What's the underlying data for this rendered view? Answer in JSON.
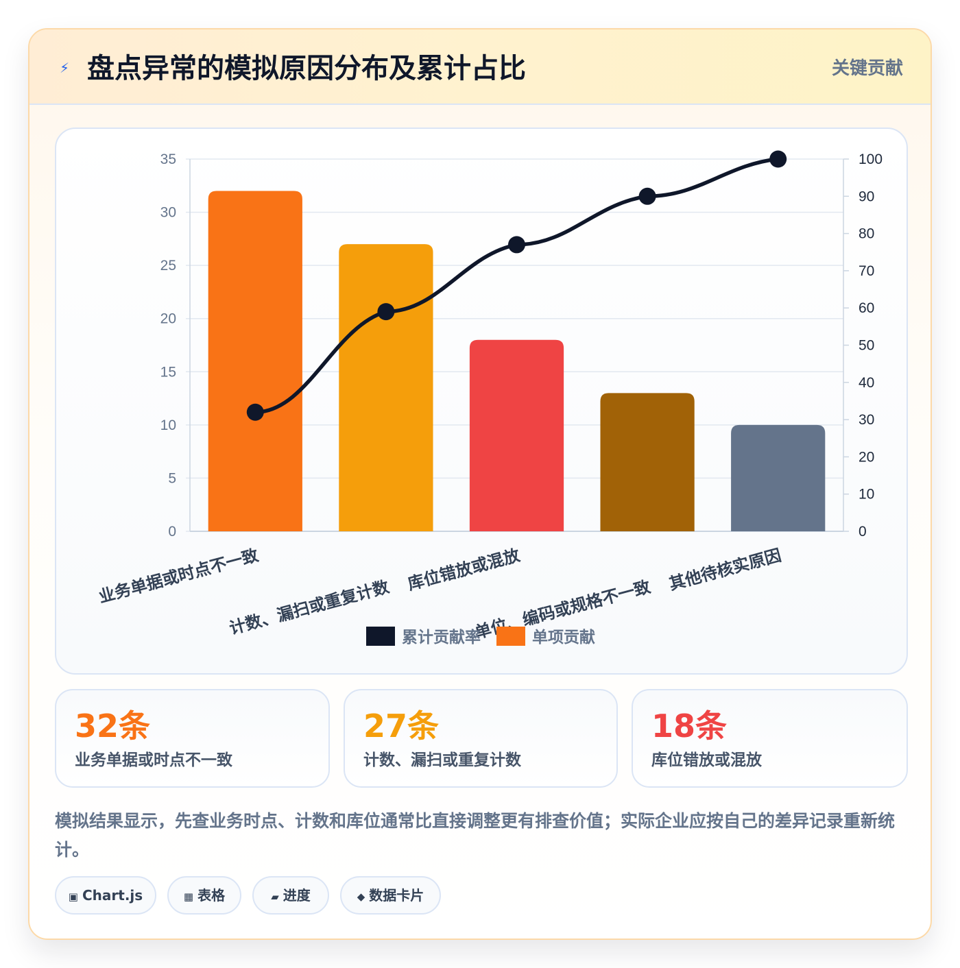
{
  "header": {
    "icon": "lightning-icon",
    "icon_glyph": "⚡",
    "title": "盘点异常的模拟原因分布及累计占比",
    "badge": "关键贡献"
  },
  "chart_data": {
    "type": "bar",
    "categories": [
      "业务单据或时点不一致",
      "计数、漏扫或重复计数",
      "库位错放或混放",
      "单位、编码或规格不一致",
      "其他待核实原因"
    ],
    "series": [
      {
        "name": "单项贡献",
        "type": "bar",
        "axis": "left",
        "values": [
          32,
          27,
          18,
          13,
          10
        ],
        "colors": [
          "#f97316",
          "#f59e0b",
          "#ef4444",
          "#a16207",
          "#64748b"
        ]
      },
      {
        "name": "累计贡献率",
        "type": "line",
        "axis": "right",
        "values": [
          32,
          59,
          77,
          90,
          100
        ],
        "color": "#0f172a"
      }
    ],
    "y_left": {
      "min": 0,
      "max": 35,
      "ticks": [
        "0",
        "5",
        "10",
        "15",
        "20",
        "25",
        "30",
        "35"
      ]
    },
    "y_right": {
      "min": 0,
      "max": 100,
      "ticks": [
        "0",
        "10",
        "20",
        "30",
        "40",
        "50",
        "60",
        "70",
        "80",
        "90",
        "100"
      ]
    },
    "grid": true,
    "legend_position": "bottom",
    "legend": [
      {
        "label": "累计贡献率",
        "color": "#0f172a"
      },
      {
        "label": "单项贡献",
        "color": "#f97316"
      }
    ]
  },
  "stats": [
    {
      "value": "32条",
      "label": "业务单据或时点不一致",
      "color": "#f97316"
    },
    {
      "value": "27条",
      "label": "计数、漏扫或重复计数",
      "color": "#f59e0b"
    },
    {
      "value": "18条",
      "label": "库位错放或混放",
      "color": "#ef4444"
    }
  ],
  "note": "模拟结果显示，先查业务时点、计数和库位通常比直接调整更有排查价值；实际企业应按自己的差异记录重新统计。",
  "tags": [
    {
      "icon": "chart-icon",
      "glyph": "▣",
      "label": "Chart.js"
    },
    {
      "icon": "table-icon",
      "glyph": "▦",
      "label": "表格"
    },
    {
      "icon": "progress-icon",
      "glyph": "▰",
      "label": "进度"
    },
    {
      "icon": "diamond-icon",
      "glyph": "◆",
      "label": "数据卡片"
    }
  ]
}
